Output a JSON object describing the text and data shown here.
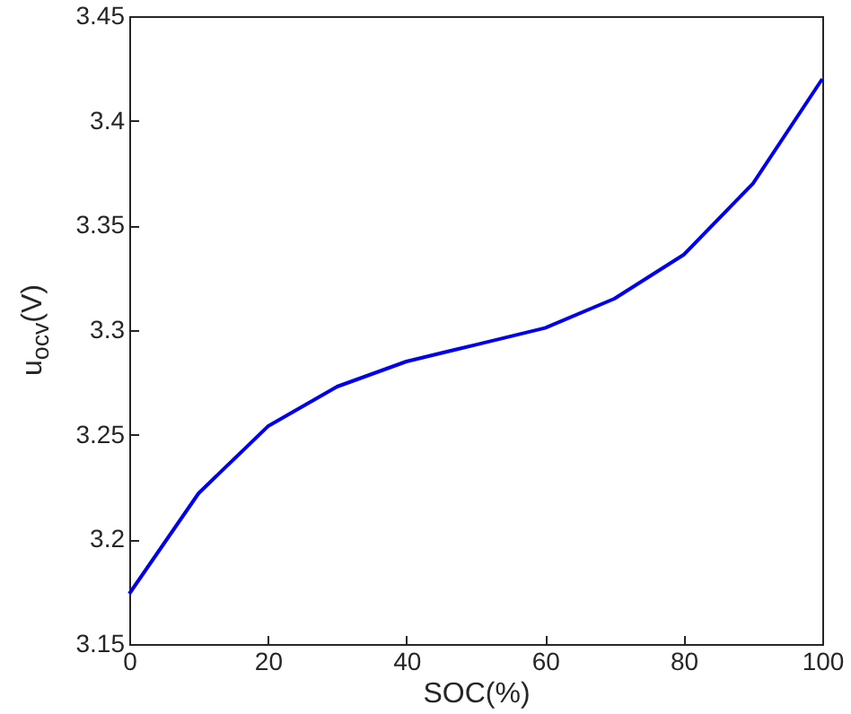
{
  "chart_data": {
    "type": "line",
    "xlabel": "SOC(%)",
    "ylabel": "u$_{ocv}$(V)",
    "x": [
      0,
      10,
      20,
      30,
      40,
      50,
      60,
      70,
      80,
      90,
      100
    ],
    "series": [
      {
        "color": "#0000ee",
        "values": [
          3.174,
          3.222,
          3.254,
          3.273,
          3.285,
          3.293,
          3.301,
          3.315,
          3.336,
          3.37,
          3.42
        ]
      }
    ],
    "xlim": [
      0,
      100
    ],
    "xticks": [
      0,
      20,
      40,
      60,
      80,
      100
    ],
    "ylim": [
      3.15,
      3.45
    ],
    "yticks": [
      3.15,
      3.2,
      3.25,
      3.3,
      3.35,
      3.4,
      3.45
    ],
    "grid": false,
    "marker": "none",
    "line_style": "solid"
  }
}
